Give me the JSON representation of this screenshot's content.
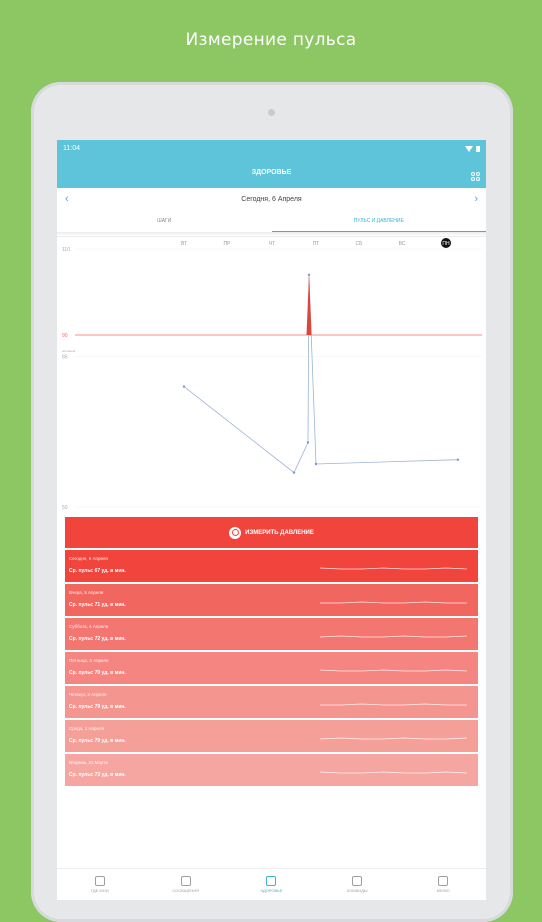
{
  "promo": {
    "title": "Измерение пульса"
  },
  "status": {
    "time": "11:04"
  },
  "app": {
    "title": "ЗДОРОВЬЕ",
    "date": "Сегодня, 6 Апреля",
    "prev": "‹",
    "next": "›"
  },
  "tabs": [
    "ШАГИ",
    "ПУЛЬС И ДАВЛЕНИЕ"
  ],
  "chart_data": {
    "type": "line",
    "categories": [
      "ВТ",
      "ПР",
      "ЧТ",
      "ПТ",
      "СБ",
      "ВС",
      "ПН"
    ],
    "y_ticks": [
      110,
      90,
      85,
      50
    ],
    "ylim": [
      50,
      110
    ],
    "threshold": 90,
    "threshold_label": "90",
    "side_label": "активный",
    "values": [
      78,
      58,
      65,
      104,
      60,
      61,
      61
    ],
    "colors": {
      "line": "#9db3d6",
      "threshold": "#f06a61",
      "peak": "#e0433a"
    }
  },
  "measure_button": {
    "label": "ИЗМЕРИТЬ ДАВЛЕНИЕ"
  },
  "days": [
    {
      "date": "Сегодня, 6 Апреля",
      "avg": "Ср. пульс 67 уд. в мин.",
      "color": "#f0443d"
    },
    {
      "date": "Вчера, 5 Апреля",
      "avg": "Ср. пульс 71 уд. в мин.",
      "color": "#f26660"
    },
    {
      "date": "Суббота, 4 Апреля",
      "avg": "Ср. пульс 72 уд. в мин.",
      "color": "#f37671"
    },
    {
      "date": "Пятница, 3 Апреля",
      "avg": "Ср. пульс 70 уд. в мин.",
      "color": "#f48580"
    },
    {
      "date": "Четверг, 2 Апреля",
      "avg": "Ср. пульс 79 уд. в мин.",
      "color": "#f5958f"
    },
    {
      "date": "Среда, 1 Апреля",
      "avg": "Ср. пульс 79 уд. в мин.",
      "color": "#f59f99"
    },
    {
      "date": "Вторник, 31 Марта",
      "avg": "Ср. пульс 73 уд. в мин.",
      "color": "#f6a6a1"
    }
  ],
  "nav": [
    "ГДЕ МОИ",
    "СООБЩЕНИЯ",
    "ЗДОРОВЬЕ",
    "КОМАНДЫ",
    "МЕНЮ"
  ]
}
